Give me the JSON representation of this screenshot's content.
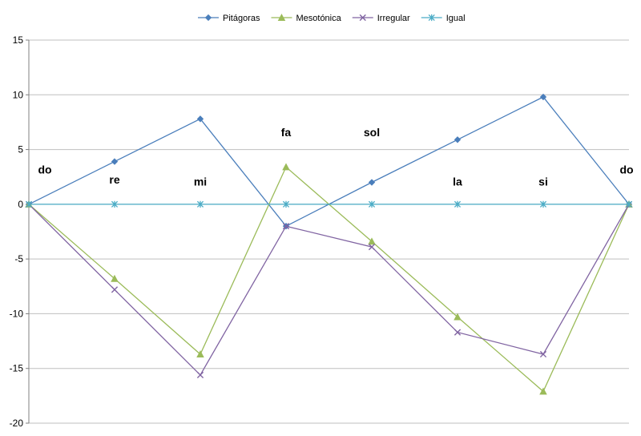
{
  "chart_data": {
    "type": "line",
    "title": "",
    "xlabel": "",
    "ylabel": "",
    "ylim": [
      -20,
      15
    ],
    "yticks": [
      15,
      10,
      5,
      0,
      -5,
      -10,
      -15,
      -20
    ],
    "grid": "horizontal",
    "legend_position": "top",
    "x": [
      0,
      1,
      2,
      3,
      4,
      5,
      6,
      7
    ],
    "series": [
      {
        "name": "Pitágoras",
        "color": "#4a7ebb",
        "marker": "diamond",
        "values": [
          0,
          3.9,
          7.8,
          -2.0,
          2.0,
          5.9,
          9.8,
          0
        ]
      },
      {
        "name": "Mesotónica",
        "color": "#9bbb59",
        "marker": "triangle",
        "values": [
          0,
          -6.8,
          -13.7,
          3.4,
          -3.4,
          -10.3,
          -17.1,
          0
        ]
      },
      {
        "name": "Irregular",
        "color": "#8064a2",
        "marker": "x",
        "values": [
          0,
          -7.8,
          -15.6,
          -2.0,
          -3.9,
          -11.7,
          -13.7,
          0
        ]
      },
      {
        "name": "Igual",
        "color": "#4bacc6",
        "marker": "star",
        "values": [
          0,
          0,
          0,
          0,
          0,
          0,
          0,
          0
        ]
      }
    ],
    "annotations": [
      {
        "text": "do",
        "x": 0,
        "y": 2.8
      },
      {
        "text": "re",
        "x": 1,
        "y": 1.9
      },
      {
        "text": "mi",
        "x": 2,
        "y": 1.7
      },
      {
        "text": "fa",
        "x": 3,
        "y": 6.2
      },
      {
        "text": "sol",
        "x": 4,
        "y": 6.2
      },
      {
        "text": "la",
        "x": 5,
        "y": 1.7
      },
      {
        "text": "si",
        "x": 6,
        "y": 1.7
      },
      {
        "text": "do",
        "x": 7,
        "y": 2.8
      }
    ]
  }
}
